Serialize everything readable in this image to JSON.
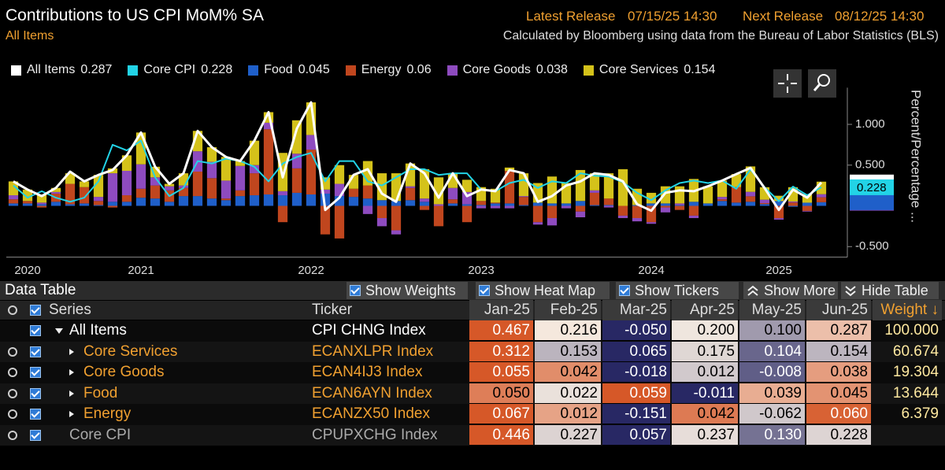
{
  "header": {
    "title": "Contributions to US CPI MoM% SA",
    "subtitle": "All Items",
    "latest_label": "Latest Release",
    "latest": "07/15/25 14:30",
    "next_label": "Next Release",
    "next": "08/12/25 14:30",
    "source": "Calculated by Bloomberg using data from the Bureau of Labor Statistics (BLS)"
  },
  "chart_data": {
    "type": "bar",
    "stacked": true,
    "y_label": "Percent/Percentage ...",
    "categories": [
      null,
      "2020",
      null,
      null,
      null,
      null,
      null,
      null,
      null,
      "2021",
      null,
      null,
      null,
      null,
      null,
      null,
      null,
      null,
      null,
      null,
      null,
      "2022",
      null,
      null,
      null,
      null,
      null,
      null,
      null,
      null,
      null,
      null,
      null,
      "2023",
      null,
      null,
      null,
      null,
      null,
      null,
      null,
      null,
      null,
      null,
      null,
      "2024",
      null,
      null,
      null,
      null,
      null,
      null,
      null,
      null,
      "2025",
      null,
      null,
      null
    ],
    "ylim": [
      -0.6,
      1.45
    ],
    "yticks": [
      {
        "value": -0.5,
        "label": "-0.500"
      },
      {
        "value": 0.5,
        "label": "0.500"
      },
      {
        "value": 1,
        "label": "1.000"
      }
    ],
    "grid": false,
    "series": [
      {
        "name": "All Items",
        "type": "line",
        "color": "#ffffff",
        "values": [
          0.3,
          0.2,
          0.12,
          0.22,
          0.42,
          0.3,
          0.38,
          0.44,
          0.62,
          0.9,
          0.48,
          0.27,
          0.4,
          0.92,
          0.72,
          0.6,
          0.55,
          0.8,
          1.15,
          0.35,
          0.95,
          1.27,
          -0.05,
          0.1,
          0.38,
          0.45,
          0.15,
          0.05,
          0.52,
          0.4,
          0.1,
          0.4,
          0.12,
          0.2,
          0.18,
          0.44,
          0.4,
          0.05,
          0.12,
          0.25,
          0.3,
          0.4,
          0.38,
          0.3,
          0.02,
          -0.06,
          0.16,
          0.19,
          0.18,
          0.24,
          0.31,
          0.39,
          0.467,
          0.216,
          -0.05,
          0.2,
          0.1,
          0.287
        ]
      },
      {
        "name": "Core CPI",
        "type": "line",
        "color": "#22d3e6",
        "values": [
          0.25,
          0.1,
          0.18,
          0.1,
          0.05,
          0.1,
          0.3,
          0.75,
          0.68,
          0.8,
          0.35,
          0.12,
          0.22,
          0.55,
          0.52,
          0.58,
          0.55,
          0.48,
          0.3,
          0.52,
          0.6,
          0.65,
          0.3,
          0.55,
          0.55,
          0.3,
          0.25,
          0.35,
          0.45,
          0.45,
          0.38,
          0.4,
          0.4,
          0.2,
          0.18,
          0.28,
          0.32,
          0.22,
          0.3,
          0.28,
          0.4,
          0.37,
          0.36,
          0.29,
          0.16,
          0.07,
          0.19,
          0.28,
          0.31,
          0.28,
          0.31,
          0.21,
          0.446,
          0.227,
          0.057,
          0.237,
          0.13,
          0.228
        ]
      },
      {
        "name": "Food",
        "type": "bar",
        "color": "#1f5fc9",
        "values": [
          0.03,
          0.03,
          0.02,
          0.05,
          0.02,
          0.03,
          0.01,
          0.05,
          0.05,
          0.1,
          0.09,
          0.05,
          0.12,
          0.12,
          0.09,
          0.07,
          0.12,
          0.13,
          0.14,
          0.13,
          0.16,
          0.14,
          0.15,
          0.12,
          0.11,
          0.09,
          0.07,
          0.06,
          0.07,
          0.05,
          0.0,
          0.03,
          0.02,
          0.01,
          0.03,
          0.03,
          0.01,
          0.04,
          0.03,
          0.03,
          0.06,
          0.01,
          0.01,
          0.0,
          0.01,
          0.03,
          0.03,
          0.01,
          0.05,
          0.03,
          0.06,
          0.04,
          0.05,
          0.022,
          0.059,
          -0.011,
          0.039,
          0.045
        ]
      },
      {
        "name": "Energy",
        "type": "bar",
        "color": "#c0461e",
        "values": [
          0.05,
          0.03,
          -0.02,
          0.1,
          0.25,
          0.2,
          0.05,
          -0.02,
          0.08,
          0.11,
          0.16,
          0.14,
          0.1,
          0.3,
          0.25,
          0.02,
          0.07,
          0.27,
          0.8,
          -0.2,
          0.3,
          0.55,
          -0.35,
          -0.4,
          0.1,
          0.16,
          -0.15,
          -0.3,
          0.15,
          -0.05,
          -0.25,
          0.05,
          -0.2,
          0.05,
          0.01,
          0.4,
          0.1,
          -0.2,
          -0.15,
          0.0,
          -0.07,
          0.15,
          0.08,
          -0.12,
          -0.15,
          -0.2,
          -0.02,
          -0.05,
          -0.12,
          0.0,
          0.02,
          0.19,
          0.067,
          0.012,
          -0.151,
          0.042,
          -0.062,
          0.06
        ]
      },
      {
        "name": "Core Goods",
        "type": "bar",
        "color": "#8e4bbf",
        "values": [
          0.05,
          0.0,
          0.02,
          0.02,
          0.0,
          0.0,
          0.05,
          0.35,
          0.3,
          0.3,
          0.1,
          0.05,
          0.03,
          0.25,
          0.2,
          0.22,
          0.3,
          0.1,
          0.08,
          0.05,
          0.18,
          0.18,
          0.05,
          0.15,
          0.0,
          -0.1,
          -0.1,
          -0.05,
          0.02,
          0.04,
          0.02,
          0.14,
          0.15,
          -0.03,
          -0.03,
          -0.03,
          0.01,
          -0.03,
          -0.09,
          -0.03,
          -0.07,
          0.03,
          -0.02,
          -0.03,
          -0.04,
          -0.02,
          -0.06,
          0.02,
          -0.03,
          0.0,
          0.03,
          0.0,
          0.055,
          0.042,
          -0.018,
          0.012,
          -0.008,
          0.038
        ]
      },
      {
        "name": "Core Services",
        "type": "bar",
        "color": "#d4c21a",
        "values": [
          0.17,
          0.14,
          0.1,
          0.05,
          0.13,
          0.07,
          0.27,
          0.06,
          0.19,
          0.39,
          0.13,
          0.03,
          0.15,
          0.25,
          0.18,
          0.29,
          0.06,
          0.3,
          0.13,
          0.47,
          0.41,
          0.4,
          0.15,
          0.23,
          0.17,
          0.3,
          0.33,
          0.34,
          0.28,
          0.36,
          0.33,
          0.18,
          0.15,
          0.17,
          0.17,
          0.04,
          0.28,
          0.24,
          0.33,
          0.25,
          0.38,
          0.21,
          0.31,
          0.45,
          0.2,
          0.13,
          0.21,
          0.21,
          0.28,
          0.21,
          0.2,
          0.16,
          0.312,
          0.153,
          0.065,
          0.175,
          0.104,
          0.154
        ]
      }
    ]
  },
  "toolbar": {
    "title": "Data Table",
    "options": [
      "Show Weights",
      "Show Heat Map",
      "Show Tickers"
    ],
    "more": "Show More",
    "hide": "Hide Table"
  },
  "table": {
    "heat_map": true,
    "columns": [
      "Series",
      "Ticker",
      "Jan-25",
      "Feb-25",
      "Mar-25",
      "Apr-25",
      "May-25",
      "Jun-25",
      "Weight ↓"
    ],
    "rows": [
      [
        "All Items",
        "CPI CHNG Index",
        "0.467",
        "0.216",
        "-0.050",
        "0.200",
        "0.100",
        "0.287",
        "100.000"
      ],
      [
        "Core Services",
        "ECANXLPR Index",
        "0.312",
        "0.153",
        "0.065",
        "0.175",
        "0.104",
        "0.154",
        "60.674"
      ],
      [
        "Core Goods",
        "ECAN4IJ3 Index",
        "0.055",
        "0.042",
        "-0.018",
        "0.012",
        "-0.008",
        "0.038",
        "19.304"
      ],
      [
        "Food",
        "ECAN6AYN Index",
        "0.050",
        "0.022",
        "0.059",
        "-0.011",
        "0.039",
        "0.045",
        "13.644"
      ],
      [
        "Energy",
        "ECANZX50 Index",
        "0.067",
        "0.012",
        "-0.151",
        "0.042",
        "-0.062",
        "0.060",
        "6.379"
      ],
      [
        "Core CPI",
        "CPUPXCHG Index",
        "0.446",
        "0.227",
        "0.057",
        "0.237",
        "0.130",
        "0.228"
      ]
    ]
  }
}
